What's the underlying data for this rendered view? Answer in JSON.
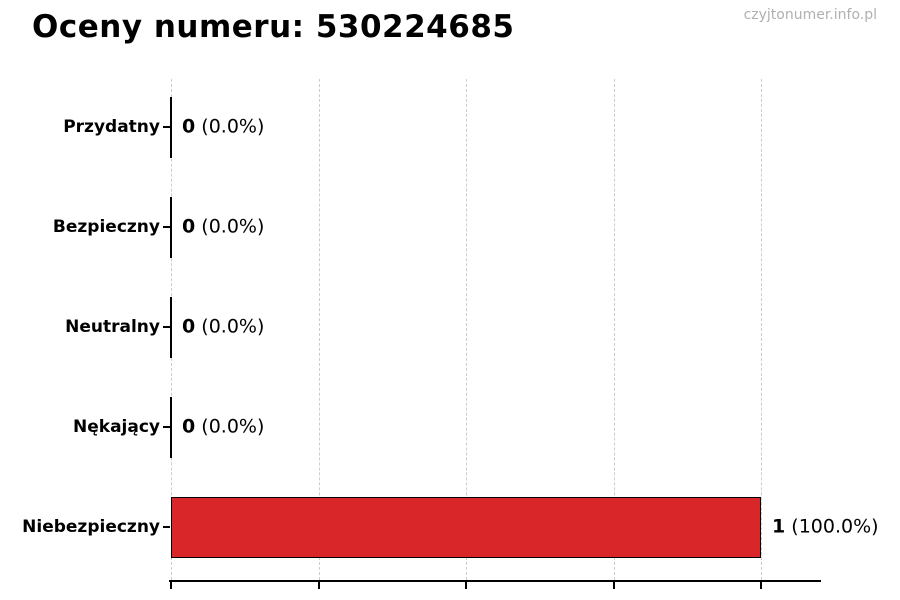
{
  "page": {
    "watermark": "czyjtonumer.info.pl"
  },
  "chart_data": {
    "type": "bar",
    "orientation": "horizontal",
    "title": "Oceny numeru: 530224685",
    "categories": [
      "Przydatny",
      "Bezpieczny",
      "Neutralny",
      "Nękający",
      "Niebezpieczny"
    ],
    "values": [
      0,
      0,
      0,
      0,
      1
    ],
    "value_labels": [
      {
        "count": "0",
        "percent": "(0.0%)"
      },
      {
        "count": "0",
        "percent": "(0.0%)"
      },
      {
        "count": "0",
        "percent": "(0.0%)"
      },
      {
        "count": "0",
        "percent": "(0.0%)"
      },
      {
        "count": "1",
        "percent": "(100.0%)"
      }
    ],
    "xlabel": "",
    "ylabel": "",
    "xlim": [
      0,
      1.1
    ],
    "xticks": [
      0,
      0.25,
      0.5,
      0.75,
      1.0
    ],
    "xtick_labels_visible": false,
    "grid": {
      "axis": "x",
      "style": "dashed",
      "color": "#cccccc"
    },
    "legend": "none",
    "bar_color": "#d92629",
    "bar_edge_color": "#000000",
    "total_votes": 1
  }
}
